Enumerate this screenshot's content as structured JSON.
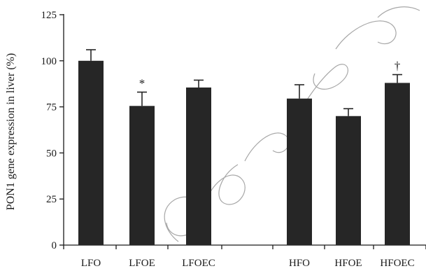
{
  "chart_data": {
    "type": "bar",
    "ylabel": "PON1 gene expression in liver (%)",
    "xlabel": "",
    "ylim": [
      0,
      125
    ],
    "yticks": [
      0,
      25,
      50,
      75,
      100,
      125
    ],
    "categories": [
      "LFO",
      "LFOE",
      "LFOEC",
      "HFO",
      "HFOE",
      "HFOEC"
    ],
    "values": [
      100,
      75.5,
      85.5,
      79.5,
      70,
      88
    ],
    "errors": [
      6,
      7.5,
      4,
      7.5,
      4,
      4.5
    ],
    "annotations": [
      "",
      "*",
      "",
      "",
      "",
      "†"
    ],
    "bar_color": "#262626",
    "grid": false
  }
}
